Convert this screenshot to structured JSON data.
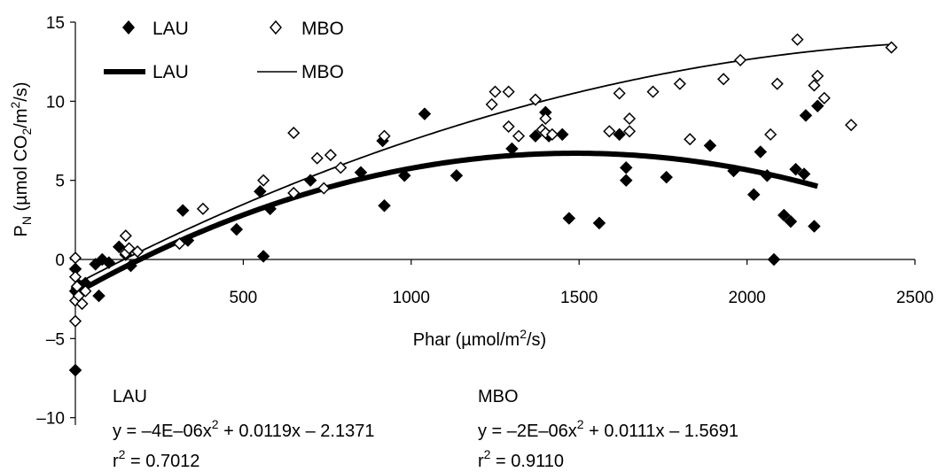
{
  "chart_data": {
    "type": "scatter",
    "xlabel": "Phar (µmol/m²/s)",
    "ylabel": "PN (µmol CO2/m²/s)",
    "xlim": [
      0,
      2500
    ],
    "ylim": [
      -10,
      15
    ],
    "xticks": [
      500,
      1000,
      1500,
      2000,
      2500
    ],
    "yticks": [
      -10,
      -5,
      0,
      5,
      10,
      15
    ],
    "grid": false,
    "legend_position": "top-left",
    "series": [
      {
        "name": "LAU",
        "kind": "points",
        "marker": "filled-diamond",
        "color": "#000000",
        "points": [
          [
            0,
            -7.0
          ],
          [
            0,
            -0.6
          ],
          [
            0,
            -2.0
          ],
          [
            5,
            -1.8
          ],
          [
            10,
            -1.6
          ],
          [
            30,
            -1.5
          ],
          [
            60,
            -0.3
          ],
          [
            70,
            -2.3
          ],
          [
            80,
            0.0
          ],
          [
            100,
            -0.2
          ],
          [
            130,
            0.8
          ],
          [
            150,
            0.3
          ],
          [
            165,
            -0.4
          ],
          [
            320,
            3.1
          ],
          [
            335,
            1.2
          ],
          [
            480,
            1.9
          ],
          [
            550,
            4.3
          ],
          [
            560,
            0.2
          ],
          [
            580,
            3.2
          ],
          [
            700,
            5.0
          ],
          [
            850,
            5.5
          ],
          [
            915,
            7.5
          ],
          [
            920,
            3.4
          ],
          [
            980,
            5.3
          ],
          [
            1040,
            9.2
          ],
          [
            1135,
            5.3
          ],
          [
            1300,
            7.0
          ],
          [
            1370,
            7.8
          ],
          [
            1400,
            9.3
          ],
          [
            1410,
            7.8
          ],
          [
            1450,
            7.9
          ],
          [
            1470,
            2.6
          ],
          [
            1560,
            2.3
          ],
          [
            1620,
            7.9
          ],
          [
            1640,
            5.8
          ],
          [
            1640,
            5.0
          ],
          [
            1760,
            5.2
          ],
          [
            1890,
            7.2
          ],
          [
            1960,
            5.6
          ],
          [
            2020,
            4.1
          ],
          [
            2040,
            6.8
          ],
          [
            2060,
            5.3
          ],
          [
            2080,
            0.0
          ],
          [
            2110,
            2.8
          ],
          [
            2130,
            2.4
          ],
          [
            2145,
            5.7
          ],
          [
            2170,
            5.4
          ],
          [
            2175,
            9.1
          ],
          [
            2200,
            2.1
          ],
          [
            2210,
            9.7
          ]
        ]
      },
      {
        "name": "MBO",
        "kind": "points",
        "marker": "open-diamond",
        "color": "#000000",
        "points": [
          [
            0,
            -3.9
          ],
          [
            0,
            -2.6
          ],
          [
            0,
            -1.1
          ],
          [
            0,
            0.1
          ],
          [
            5,
            -1.7
          ],
          [
            10,
            -2.3
          ],
          [
            20,
            -2.8
          ],
          [
            30,
            -2.0
          ],
          [
            150,
            1.5
          ],
          [
            150,
            0.4
          ],
          [
            160,
            0.7
          ],
          [
            185,
            0.5
          ],
          [
            310,
            1.0
          ],
          [
            380,
            3.2
          ],
          [
            560,
            5.0
          ],
          [
            650,
            8.0
          ],
          [
            650,
            4.2
          ],
          [
            720,
            6.4
          ],
          [
            740,
            4.5
          ],
          [
            760,
            6.6
          ],
          [
            790,
            5.8
          ],
          [
            920,
            7.8
          ],
          [
            1240,
            9.8
          ],
          [
            1250,
            10.6
          ],
          [
            1290,
            10.6
          ],
          [
            1290,
            8.4
          ],
          [
            1320,
            7.8
          ],
          [
            1370,
            10.1
          ],
          [
            1390,
            8.2
          ],
          [
            1400,
            8.0
          ],
          [
            1400,
            8.9
          ],
          [
            1420,
            7.9
          ],
          [
            1590,
            8.1
          ],
          [
            1620,
            10.5
          ],
          [
            1650,
            8.9
          ],
          [
            1650,
            8.1
          ],
          [
            1720,
            10.6
          ],
          [
            1800,
            11.1
          ],
          [
            1830,
            7.6
          ],
          [
            1930,
            11.4
          ],
          [
            1980,
            12.6
          ],
          [
            2070,
            7.9
          ],
          [
            2090,
            11.1
          ],
          [
            2150,
            13.9
          ],
          [
            2200,
            11.0
          ],
          [
            2210,
            11.6
          ],
          [
            2230,
            10.2
          ],
          [
            2310,
            8.5
          ],
          [
            2430,
            13.4
          ]
        ]
      },
      {
        "name": "LAU",
        "kind": "fit-line",
        "line_width": "thick",
        "color": "#000000",
        "coefficients": [
          -4e-06,
          0.0119,
          -2.1371
        ],
        "x_range": [
          0,
          2210
        ]
      },
      {
        "name": "MBO",
        "kind": "fit-line",
        "line_width": "thin",
        "color": "#000000",
        "coefficients": [
          -2e-06,
          0.0111,
          -1.5691
        ],
        "x_range": [
          0,
          2430
        ]
      }
    ],
    "annotations": {
      "lau": {
        "title": "LAU",
        "eq_prefix": "y = –4E–06x",
        "eq_exp": "2",
        "eq_suffix": " + 0.0119x – 2.1371",
        "r_prefix": "r",
        "r_exp": "2",
        "r_suffix": " = 0.7012"
      },
      "mbo": {
        "title": "MBO",
        "eq_prefix": "y = –2E–06x",
        "eq_exp": "2",
        "eq_suffix": " + 0.0111x – 1.5691",
        "r_prefix": "r",
        "r_exp": "2",
        "r_suffix": " = 0.9110"
      }
    }
  },
  "labels": {
    "x_axis_title": {
      "main": "Phar (µmol/m",
      "sup": "2",
      "tail": "/s)"
    },
    "y_axis_title": {
      "p": "P",
      "sub": "N",
      "mid": " (µmol CO",
      "sub2": "2",
      "mid2": "/m",
      "sup": "2",
      "tail": "/s)"
    }
  }
}
